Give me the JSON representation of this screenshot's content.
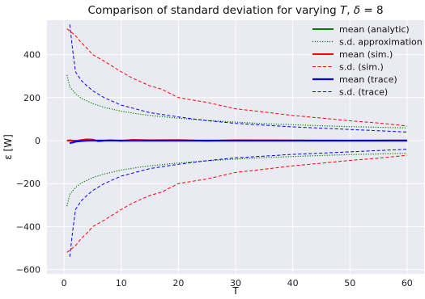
{
  "chart_data": {
    "type": "line",
    "title": "Comparison of standard deviation for varying T, δ = 8",
    "xlabel": "T",
    "ylabel": "ε  [W]",
    "xlim": [
      -3,
      63
    ],
    "ylim": [
      -620,
      560
    ],
    "xticks": [
      0,
      10,
      20,
      30,
      40,
      50,
      60
    ],
    "yticks": [
      -600,
      -400,
      -200,
      0,
      200,
      400
    ],
    "grid": true,
    "legend_position": "top-right",
    "series": [
      {
        "name": "mean (analytic)",
        "color": "#008000",
        "style": "solid",
        "width": 2,
        "x": [
          0.5,
          60
        ],
        "y": [
          0,
          0
        ]
      },
      {
        "name": "s.d. approximation",
        "color": "#008000",
        "style": "dotted",
        "width": 1.2,
        "mirror": true,
        "x": [
          0.5,
          1,
          2,
          3,
          5,
          7,
          10,
          13,
          15,
          20,
          25,
          30,
          35,
          40,
          45,
          50,
          55,
          60
        ],
        "y": [
          305,
          250,
          218,
          197,
          172,
          155,
          137,
          124,
          117,
          104,
          94,
          86,
          79,
          74,
          69,
          65,
          62,
          59
        ]
      },
      {
        "name": "mean (sim.)",
        "color": "#ff0000",
        "style": "solid",
        "width": 2,
        "x": [
          0.5,
          1,
          2,
          3,
          4,
          5,
          6,
          8,
          10,
          12,
          15,
          20,
          25,
          30,
          40,
          50,
          60
        ],
        "y": [
          0,
          2,
          -2,
          3,
          6,
          5,
          -3,
          2,
          -1,
          4,
          2,
          3,
          -1,
          2,
          1,
          0,
          1
        ]
      },
      {
        "name": "s.d. (sim.)",
        "color": "#ff0000",
        "style": "dashed",
        "width": 1,
        "mirror": true,
        "x": [
          0.5,
          1,
          2,
          3,
          4,
          5,
          7,
          10,
          12,
          15,
          17,
          20,
          25,
          30,
          35,
          40,
          45,
          50,
          55,
          60
        ],
        "y": [
          520,
          510,
          488,
          455,
          430,
          400,
          370,
          320,
          290,
          255,
          240,
          200,
          178,
          148,
          133,
          117,
          105,
          92,
          82,
          68
        ]
      },
      {
        "name": "mean (trace)",
        "color": "#0000ff",
        "style": "solid",
        "width": 2.2,
        "x": [
          1,
          2,
          3,
          4,
          5,
          6,
          8,
          10,
          15,
          20,
          30,
          40,
          50,
          60
        ],
        "y": [
          -12,
          -5,
          -2,
          0,
          1,
          0,
          1,
          0,
          0,
          0,
          0,
          0,
          0,
          0
        ]
      },
      {
        "name": "s.d. (trace)",
        "color": "#0000ff",
        "style": "dashed",
        "width": 1,
        "mirror": true,
        "x": [
          1,
          1.5,
          2,
          3,
          4,
          5,
          7,
          10,
          15,
          20,
          25,
          30,
          35,
          40,
          45,
          50,
          55,
          60
        ],
        "y": [
          540,
          420,
          320,
          280,
          255,
          232,
          200,
          165,
          130,
          110,
          93,
          80,
          72,
          64,
          58,
          52,
          46,
          40
        ]
      }
    ]
  }
}
